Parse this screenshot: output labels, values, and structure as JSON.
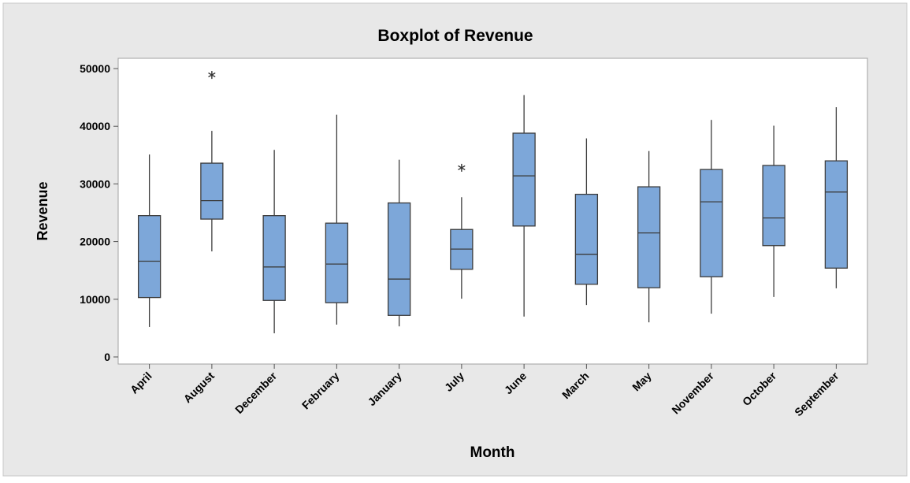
{
  "chart_data": {
    "type": "box",
    "title": "Boxplot of Revenue",
    "x_label": "Month",
    "y_label": "Revenue",
    "categories": [
      "April",
      "August",
      "December",
      "February",
      "January",
      "July",
      "June",
      "March",
      "May",
      "November",
      "October",
      "September"
    ],
    "boxes": [
      {
        "min": 5200,
        "q1": 10300,
        "median": 16600,
        "q3": 24500,
        "max": 35100,
        "outliers": []
      },
      {
        "min": 18300,
        "q1": 23900,
        "median": 27100,
        "q3": 33600,
        "max": 39200,
        "outliers": [
          48900
        ]
      },
      {
        "min": 4100,
        "q1": 9800,
        "median": 15600,
        "q3": 24500,
        "max": 35900,
        "outliers": []
      },
      {
        "min": 5600,
        "q1": 9400,
        "median": 16100,
        "q3": 23200,
        "max": 42000,
        "outliers": []
      },
      {
        "min": 5300,
        "q1": 7200,
        "median": 13500,
        "q3": 26700,
        "max": 34200,
        "outliers": []
      },
      {
        "min": 10100,
        "q1": 15200,
        "median": 18700,
        "q3": 22100,
        "max": 27700,
        "outliers": [
          32800
        ]
      },
      {
        "min": 7000,
        "q1": 22700,
        "median": 31400,
        "q3": 38800,
        "max": 45400,
        "outliers": []
      },
      {
        "min": 9000,
        "q1": 12600,
        "median": 17800,
        "q3": 28200,
        "max": 37900,
        "outliers": []
      },
      {
        "min": 6000,
        "q1": 12000,
        "median": 21500,
        "q3": 29500,
        "max": 35700,
        "outliers": []
      },
      {
        "min": 7500,
        "q1": 13900,
        "median": 26900,
        "q3": 32500,
        "max": 41100,
        "outliers": []
      },
      {
        "min": 10400,
        "q1": 19300,
        "median": 24100,
        "q3": 33200,
        "max": 40100,
        "outliers": []
      },
      {
        "min": 11900,
        "q1": 15400,
        "median": 28600,
        "q3": 34000,
        "max": 43300,
        "outliers": []
      }
    ],
    "color": "#7da7d9",
    "ylim": [
      -1230,
      51780
    ],
    "yticks": [
      0,
      10000,
      20000,
      30000,
      40000,
      50000
    ],
    "grid": false
  }
}
